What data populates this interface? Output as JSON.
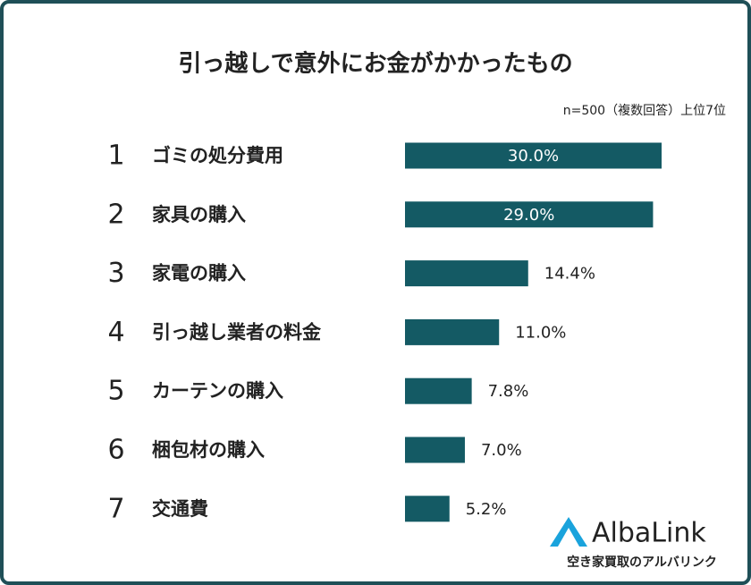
{
  "chart_data": {
    "type": "bar",
    "orientation": "horizontal",
    "title": "引っ越しで意外にお金がかかったもの",
    "subtitle": "n=500（複数回答）上位7位",
    "ranks": [
      1,
      2,
      3,
      4,
      5,
      6,
      7
    ],
    "categories": [
      "ゴミの処分費用",
      "家具の購入",
      "家電の購入",
      "引っ越し業者の料金",
      "カーテンの購入",
      "梱包材の購入",
      "交通費"
    ],
    "values": [
      30.0,
      29.0,
      14.4,
      11.0,
      7.8,
      7.0,
      5.2
    ],
    "value_labels": [
      "30.0%",
      "29.0%",
      "14.4%",
      "11.0%",
      "7.8%",
      "7.0%",
      "5.2%"
    ],
    "color": "#145a64"
  },
  "logo": {
    "name": "AlbaLink",
    "tagline": "空き家買取のアルバリンク"
  }
}
